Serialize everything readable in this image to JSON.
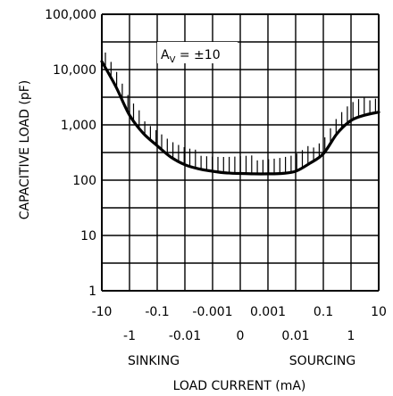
{
  "chart_data": {
    "type": "line",
    "title": "",
    "xlabel": "LOAD CURRENT (mA)",
    "ylabel": "CAPACITIVE LOAD (pF)",
    "y_scale": "log",
    "ylim": [
      1,
      100000
    ],
    "y_ticks": [
      1,
      10,
      100,
      1000,
      10000,
      100000
    ],
    "y_tick_labels": [
      "1",
      "10",
      "100",
      "1,000",
      "10,000",
      "100,000"
    ],
    "x_ticks_row1": [
      "-10",
      "-0.1",
      "-0.001",
      "0.001",
      "0.1",
      "10"
    ],
    "x_ticks_row2": [
      "-1",
      "-0.01",
      "0",
      "0.01",
      "1"
    ],
    "x_direction_labels": [
      "SINKING",
      "SOURCING"
    ],
    "annotation": "A",
    "annotation_sub": "V",
    "annotation_rest": " = ±10",
    "grid": true,
    "x_positions": [
      "-10",
      "-5",
      "-1",
      "-0.5",
      "-0.1",
      "-0.05",
      "-0.01",
      "-0.005",
      "-0.001",
      "-0.0005",
      "0",
      "0.0005",
      "0.001",
      "0.005",
      "0.01",
      "0.05",
      "0.1",
      "0.5",
      "1",
      "5",
      "10"
    ],
    "series": [
      {
        "values": [
          14000,
          5000,
          1500,
          700,
          420,
          260,
          190,
          160,
          145,
          135,
          132,
          130,
          130,
          132,
          145,
          200,
          300,
          700,
          1200,
          1500,
          1700
        ]
      }
    ]
  }
}
